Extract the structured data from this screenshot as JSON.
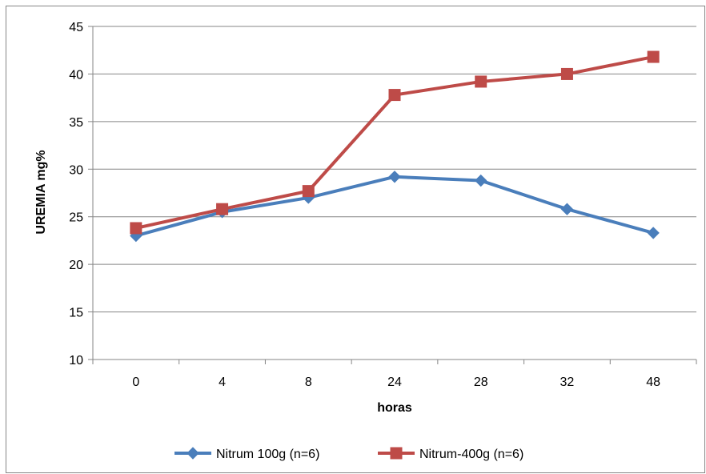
{
  "chart_data": {
    "type": "line",
    "title": "",
    "xlabel": "horas",
    "ylabel": "UREMIA mg%",
    "categories": [
      "0",
      "4",
      "8",
      "24",
      "28",
      "32",
      "48"
    ],
    "ylim": [
      10,
      45
    ],
    "yticks": [
      10,
      15,
      20,
      25,
      30,
      35,
      40,
      45
    ],
    "grid": "horizontal",
    "legend_position": "bottom",
    "series": [
      {
        "name": "Nitrum 100g (n=6)",
        "color": "#4A7EBB",
        "marker": "diamond",
        "values": [
          23.0,
          25.5,
          27.0,
          29.2,
          28.8,
          25.8,
          23.3
        ]
      },
      {
        "name": "Nitrum-400g (n=6)",
        "color": "#BE4B48",
        "marker": "square",
        "values": [
          23.8,
          25.8,
          27.7,
          37.8,
          39.2,
          40.0,
          41.8
        ]
      }
    ]
  }
}
